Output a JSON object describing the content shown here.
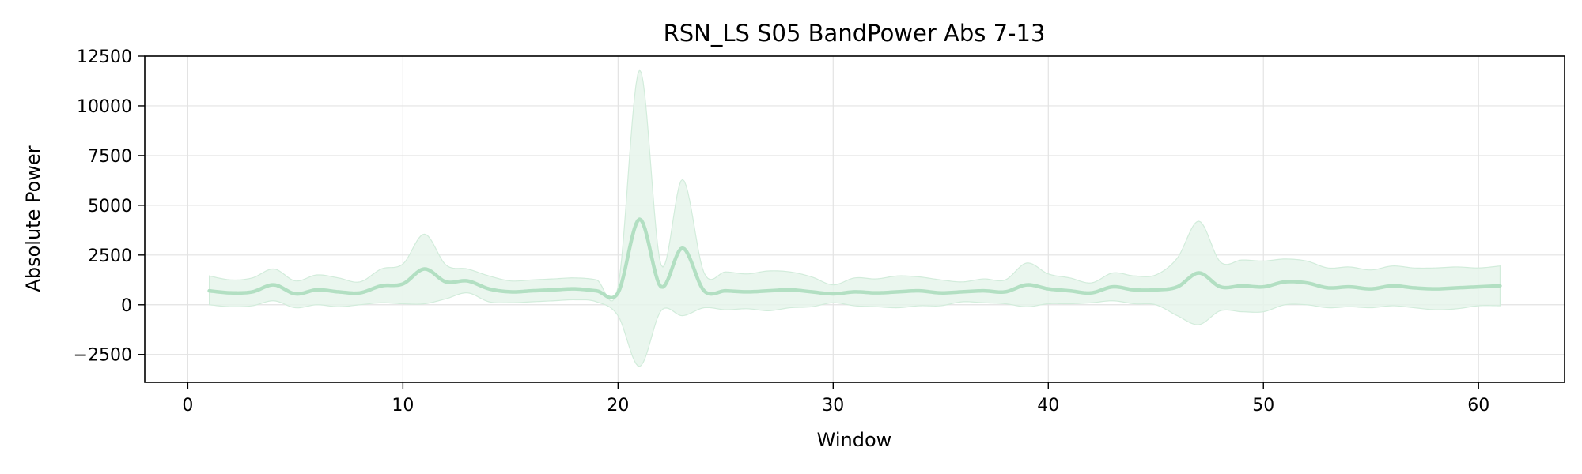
{
  "chart_data": {
    "type": "line",
    "title": "RSN_LS S05 BandPower Abs 7-13",
    "xlabel": "Window",
    "ylabel": "Absolute Power",
    "xlim": [
      -2,
      64
    ],
    "ylim": [
      -3900,
      12500
    ],
    "xticks": [
      0,
      10,
      20,
      30,
      40,
      50,
      60
    ],
    "yticks": [
      -2500,
      0,
      2500,
      5000,
      7500,
      10000,
      12500
    ],
    "xtick_labels": [
      "0",
      "10",
      "20",
      "30",
      "40",
      "50",
      "60"
    ],
    "ytick_labels": [
      "−2500",
      "0",
      "2500",
      "5000",
      "7500",
      "10000",
      "12500"
    ],
    "grid": true,
    "colors": {
      "line": "#b2dfc2",
      "band": "#e6f5eb",
      "band_edge": "#d2ecdb"
    },
    "series": [
      {
        "x": [
          1,
          2,
          3,
          4,
          5,
          6,
          7,
          8,
          9,
          10,
          11,
          12,
          13,
          14,
          15,
          16,
          17,
          18,
          19,
          20,
          21,
          22,
          23,
          24,
          25,
          26,
          27,
          28,
          29,
          30,
          31,
          32,
          33,
          34,
          35,
          36,
          37,
          38,
          39,
          40,
          41,
          42,
          43,
          44,
          45,
          46,
          47,
          48,
          49,
          50,
          51,
          52,
          53,
          54,
          55,
          56,
          57,
          58,
          59,
          60,
          61
        ],
        "mean": [
          700,
          600,
          650,
          1000,
          550,
          750,
          650,
          600,
          950,
          1050,
          1800,
          1150,
          1200,
          800,
          650,
          700,
          750,
          800,
          700,
          600,
          4300,
          900,
          2850,
          700,
          700,
          650,
          700,
          750,
          650,
          550,
          650,
          600,
          650,
          700,
          600,
          650,
          700,
          650,
          1000,
          800,
          700,
          600,
          900,
          750,
          750,
          900,
          1600,
          900,
          950,
          900,
          1150,
          1100,
          850,
          900,
          800,
          950,
          850,
          800,
          850,
          900,
          950
        ],
        "upper": [
          1450,
          1250,
          1350,
          1800,
          1200,
          1500,
          1350,
          1150,
          1800,
          2050,
          3550,
          2000,
          1800,
          1450,
          1200,
          1250,
          1300,
          1350,
          1250,
          900,
          11800,
          2000,
          6300,
          1600,
          1650,
          1550,
          1700,
          1650,
          1400,
          1000,
          1350,
          1300,
          1450,
          1400,
          1250,
          1150,
          1300,
          1250,
          2100,
          1550,
          1350,
          1100,
          1600,
          1450,
          1500,
          2350,
          4200,
          2150,
          2250,
          2200,
          2300,
          2200,
          1850,
          1900,
          1750,
          1950,
          1850,
          1850,
          1900,
          1850,
          1950
        ],
        "lower": [
          0,
          -100,
          -50,
          200,
          -150,
          0,
          -100,
          0,
          100,
          50,
          50,
          300,
          600,
          150,
          100,
          150,
          200,
          250,
          150,
          -550,
          -3100,
          -300,
          -550,
          -150,
          -250,
          -200,
          -300,
          -150,
          -100,
          100,
          -50,
          -100,
          -150,
          -50,
          -50,
          150,
          100,
          50,
          -100,
          50,
          50,
          100,
          200,
          50,
          0,
          -550,
          -1000,
          -300,
          -350,
          -350,
          0,
          0,
          -150,
          -100,
          -150,
          -50,
          -150,
          -250,
          -200,
          -50,
          -50
        ]
      }
    ]
  }
}
